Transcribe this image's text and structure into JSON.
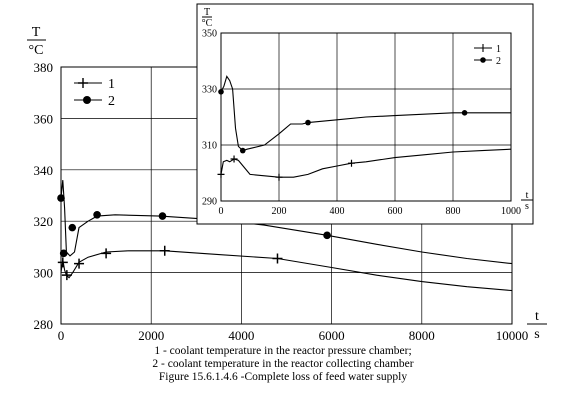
{
  "chart_data": [
    {
      "type": "line",
      "title": "",
      "y_unit_symbol": "T",
      "y_unit": "°C",
      "x_unit_symbol": "t",
      "x_unit": "s",
      "xlim": [
        0,
        10000
      ],
      "ylim": [
        280,
        380
      ],
      "xticks": [
        0,
        2000,
        4000,
        6000,
        8000,
        10000
      ],
      "yticks": [
        280,
        300,
        320,
        340,
        360,
        380
      ],
      "grid": true,
      "legend_position": "top-left",
      "series": [
        {
          "name": "1",
          "marker": "plus",
          "x": [
            0,
            40,
            80,
            120,
            180,
            260,
            400,
            600,
            1000,
            1500,
            2300,
            3500,
            4800,
            6000,
            7000,
            8000,
            9000,
            10000
          ],
          "y": [
            300,
            305,
            301,
            299,
            298,
            300,
            304,
            306,
            308,
            308.5,
            308.5,
            307,
            305.5,
            302,
            299,
            296.5,
            294.5,
            293
          ],
          "marker_x": [
            40,
            130,
            400,
            1000,
            2300,
            4800
          ],
          "marker_y": [
            304,
            299,
            303.5,
            307.5,
            308.5,
            305.5
          ]
        },
        {
          "name": "2",
          "marker": "circle",
          "x": [
            0,
            40,
            80,
            120,
            200,
            300,
            400,
            600,
            800,
            1200,
            2200,
            3500,
            4500,
            5900,
            7000,
            8000,
            9000,
            10000
          ],
          "y": [
            329,
            336,
            325,
            308,
            306.5,
            308,
            317.5,
            320,
            322,
            322.5,
            322,
            320.5,
            318.5,
            314.5,
            311,
            308,
            305.5,
            303.5
          ],
          "marker_x": [
            0,
            60,
            250,
            800,
            2250,
            5900
          ],
          "marker_y": [
            329,
            307.5,
            317.5,
            322.5,
            322,
            314.5
          ]
        }
      ]
    },
    {
      "type": "line",
      "title": "",
      "y_unit_symbol": "T",
      "y_unit": "°C",
      "x_unit_symbol": "t",
      "x_unit": "s",
      "xlim": [
        0,
        1000
      ],
      "ylim": [
        290,
        350
      ],
      "xticks": [
        0,
        200,
        400,
        600,
        800,
        1000
      ],
      "yticks": [
        290,
        310,
        330,
        350
      ],
      "grid": true,
      "legend_position": "top-right",
      "series": [
        {
          "name": "1",
          "marker": "plus",
          "x": [
            0,
            8,
            20,
            30,
            45,
            60,
            80,
            100,
            150,
            200,
            250,
            300,
            350,
            400,
            450,
            500,
            600,
            700,
            800,
            900,
            1000
          ],
          "y": [
            299.5,
            304,
            304.5,
            304,
            305,
            304.5,
            302,
            299.5,
            299,
            298.5,
            298.5,
            299.5,
            301.5,
            302.5,
            303.5,
            304,
            305.5,
            306.5,
            307.5,
            308,
            308.5
          ],
          "marker_x": [
            0,
            45,
            200,
            450
          ],
          "marker_y": [
            299.5,
            305,
            298.5,
            303.5
          ]
        },
        {
          "name": "2",
          "marker": "circle",
          "x": [
            0,
            10,
            20,
            30,
            40,
            50,
            60,
            75,
            90,
            110,
            150,
            200,
            240,
            280,
            300,
            350,
            400,
            500,
            600,
            700,
            800,
            900,
            1000
          ],
          "y": [
            329,
            331,
            334.5,
            333,
            330,
            316,
            309.5,
            308,
            308.5,
            309,
            310,
            314,
            317.5,
            317.5,
            318,
            318.5,
            319,
            320,
            320.5,
            321,
            321.5,
            321.5,
            321.5
          ],
          "marker_x": [
            0,
            75,
            300,
            840
          ],
          "marker_y": [
            329,
            308,
            318,
            321.5
          ]
        }
      ]
    }
  ],
  "caption": {
    "line1": "1 - coolant temperature in the reactor pressure chamber;",
    "line2": "2 - coolant temperature in the reactor collecting chamber",
    "line3": "Figure 15.6.1.4.6 -Complete loss of feed water supply"
  }
}
